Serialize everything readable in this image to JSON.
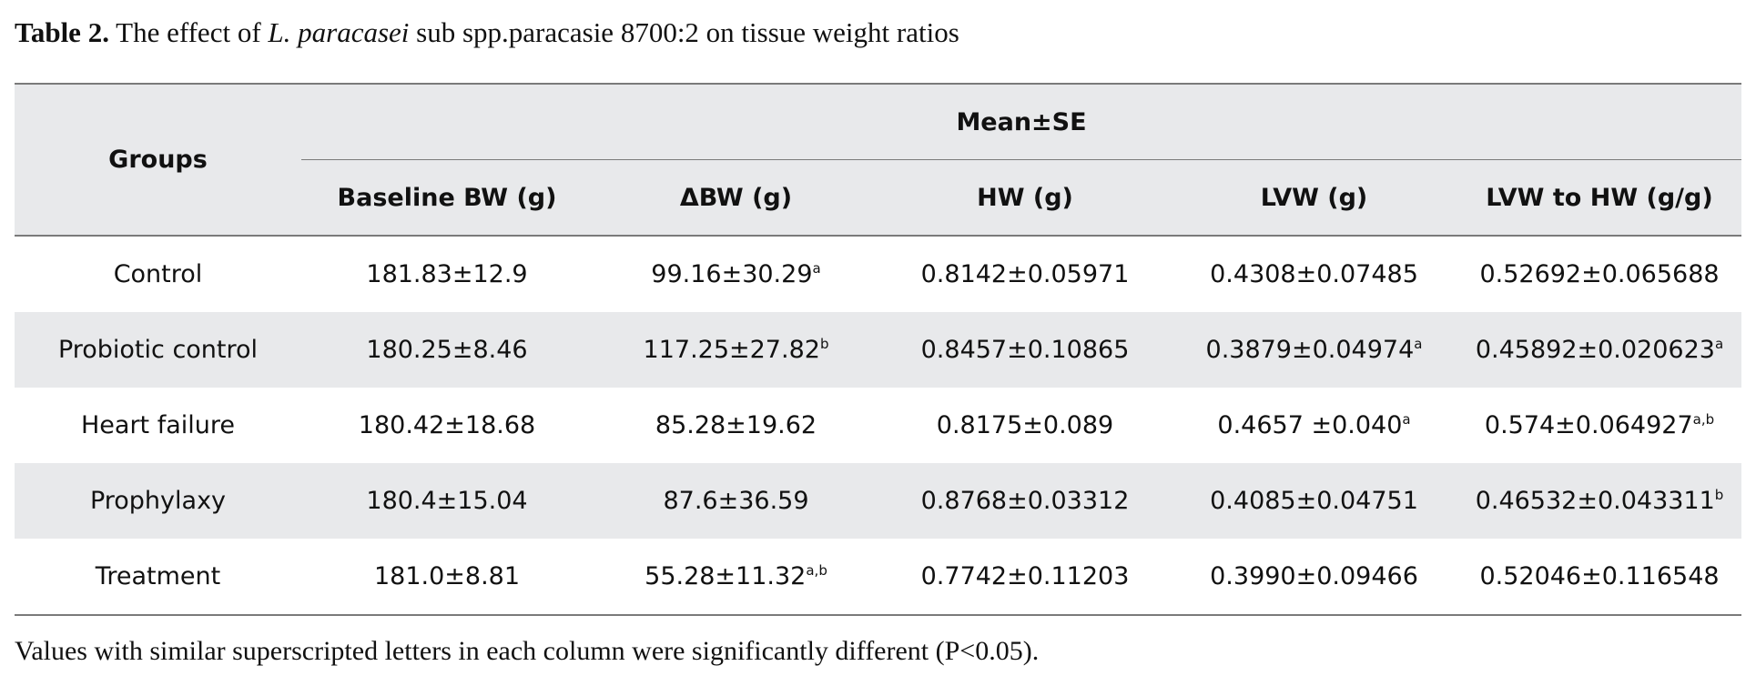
{
  "caption": {
    "label": "Table 2.",
    "text_before": " The effect of ",
    "species": "L. paracasei",
    "text_after": " sub spp.paracasie 8700:2 on tissue weight ratios"
  },
  "table": {
    "groups_header": "Groups",
    "spanning_header": "Mean±SE",
    "columns": [
      "Baseline BW (g)",
      "ΔBW (g)",
      "HW (g)",
      "LVW (g)",
      "LVW to HW (g/g)"
    ],
    "rows": [
      {
        "group": "Control",
        "cells": [
          {
            "value": "181.83±12.9",
            "sup": ""
          },
          {
            "value": "99.16±30.29",
            "sup": "a"
          },
          {
            "value": "0.8142±0.05971",
            "sup": ""
          },
          {
            "value": "0.4308±0.07485",
            "sup": ""
          },
          {
            "value": "0.52692±0.065688",
            "sup": ""
          }
        ]
      },
      {
        "group": "Probiotic control",
        "cells": [
          {
            "value": "180.25±8.46",
            "sup": ""
          },
          {
            "value": "117.25±27.82",
            "sup": "b"
          },
          {
            "value": "0.8457±0.10865",
            "sup": ""
          },
          {
            "value": "0.3879±0.04974",
            "sup": "a"
          },
          {
            "value": "0.45892±0.020623",
            "sup": "a"
          }
        ]
      },
      {
        "group": "Heart failure",
        "cells": [
          {
            "value": "180.42±18.68",
            "sup": ""
          },
          {
            "value": "85.28±19.62",
            "sup": ""
          },
          {
            "value": "0.8175±0.089",
            "sup": ""
          },
          {
            "value": "0.4657 ±0.040",
            "sup": "a"
          },
          {
            "value": "0.574±0.064927",
            "sup": "a,b"
          }
        ]
      },
      {
        "group": "Prophylaxy",
        "cells": [
          {
            "value": "180.4±15.04",
            "sup": ""
          },
          {
            "value": "87.6±36.59",
            "sup": ""
          },
          {
            "value": "0.8768±0.03312",
            "sup": ""
          },
          {
            "value": "0.4085±0.04751",
            "sup": ""
          },
          {
            "value": "0.46532±0.043311",
            "sup": "b"
          }
        ]
      },
      {
        "group": "Treatment",
        "cells": [
          {
            "value": "181.0±8.81",
            "sup": ""
          },
          {
            "value": "55.28±11.32",
            "sup": "a,b"
          },
          {
            "value": "0.7742±0.11203",
            "sup": ""
          },
          {
            "value": "0.3990±0.09466",
            "sup": ""
          },
          {
            "value": "0.52046±0.116548",
            "sup": ""
          }
        ]
      }
    ]
  },
  "footnote": "Values with similar superscripted letters in each column were significantly different (P<0.05).",
  "colors": {
    "header_background": "#e8e9eb",
    "stripe_background": "#e8e9eb",
    "rule_color": "#7a7a7a",
    "text_color": "#111111"
  }
}
